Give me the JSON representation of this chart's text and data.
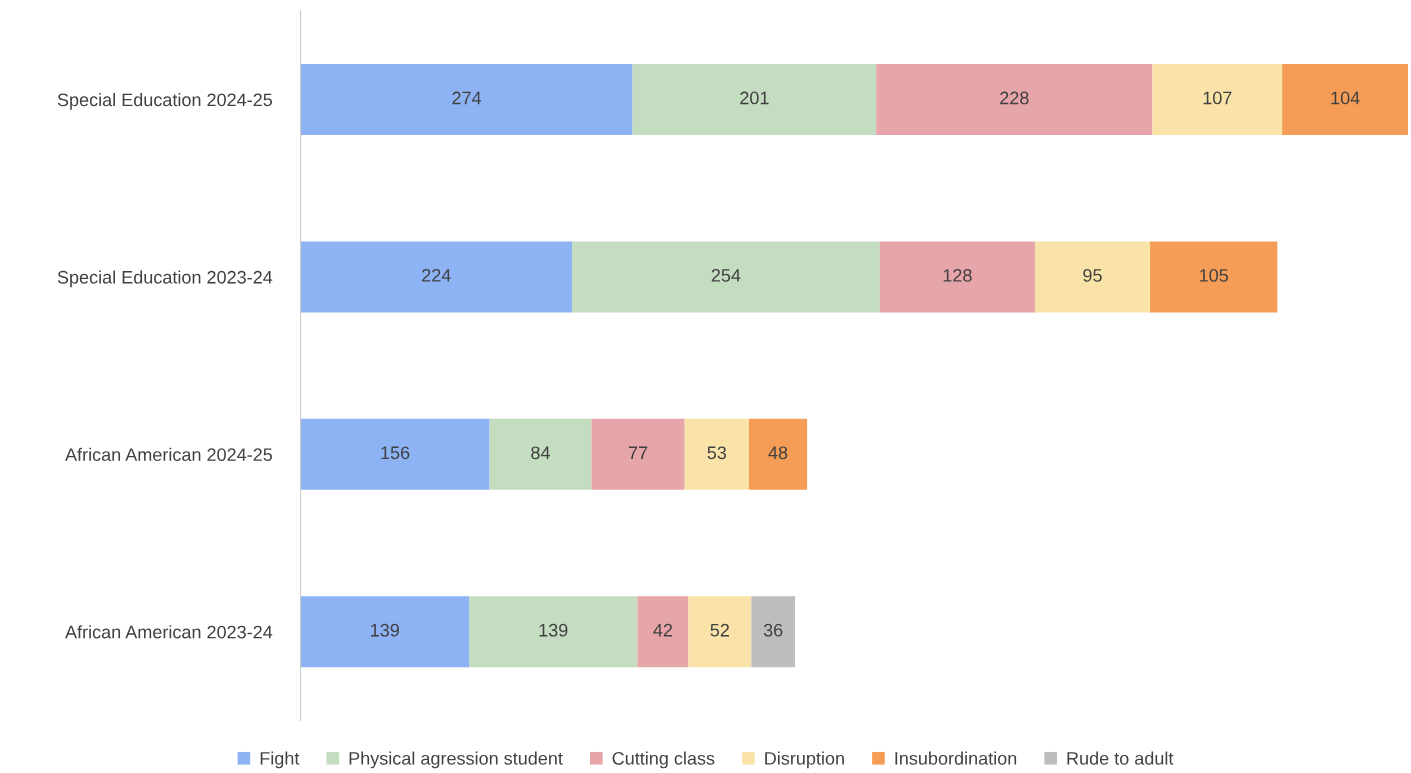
{
  "chart_data": {
    "type": "bar",
    "orientation": "horizontal",
    "stacked": true,
    "data_labels": true,
    "legend": "bottom",
    "grid": false,
    "tick_labels": "y",
    "categories": [
      "Special Education 2024-25",
      "Special Education 2023-24",
      "African American 2024-25",
      "African American 2023-24"
    ],
    "series": [
      {
        "name": "Fight",
        "color": "#8db3f5",
        "values": [
          274,
          224,
          156,
          139
        ]
      },
      {
        "name": "Physical agression student",
        "color": "#c4dcc0",
        "values": [
          201,
          254,
          84,
          139
        ]
      },
      {
        "name": "Cutting class",
        "color": "#e6a5a9",
        "values": [
          228,
          128,
          77,
          42
        ]
      },
      {
        "name": "Disruption",
        "color": "#f9e3a8",
        "values": [
          107,
          95,
          53,
          52
        ]
      },
      {
        "name": "Insubordination",
        "color": "#f59d56",
        "values": [
          104,
          105,
          48,
          null
        ]
      },
      {
        "name": "Rude to adult",
        "color": "#bdbdbd",
        "values": [
          null,
          null,
          null,
          36
        ]
      }
    ]
  }
}
